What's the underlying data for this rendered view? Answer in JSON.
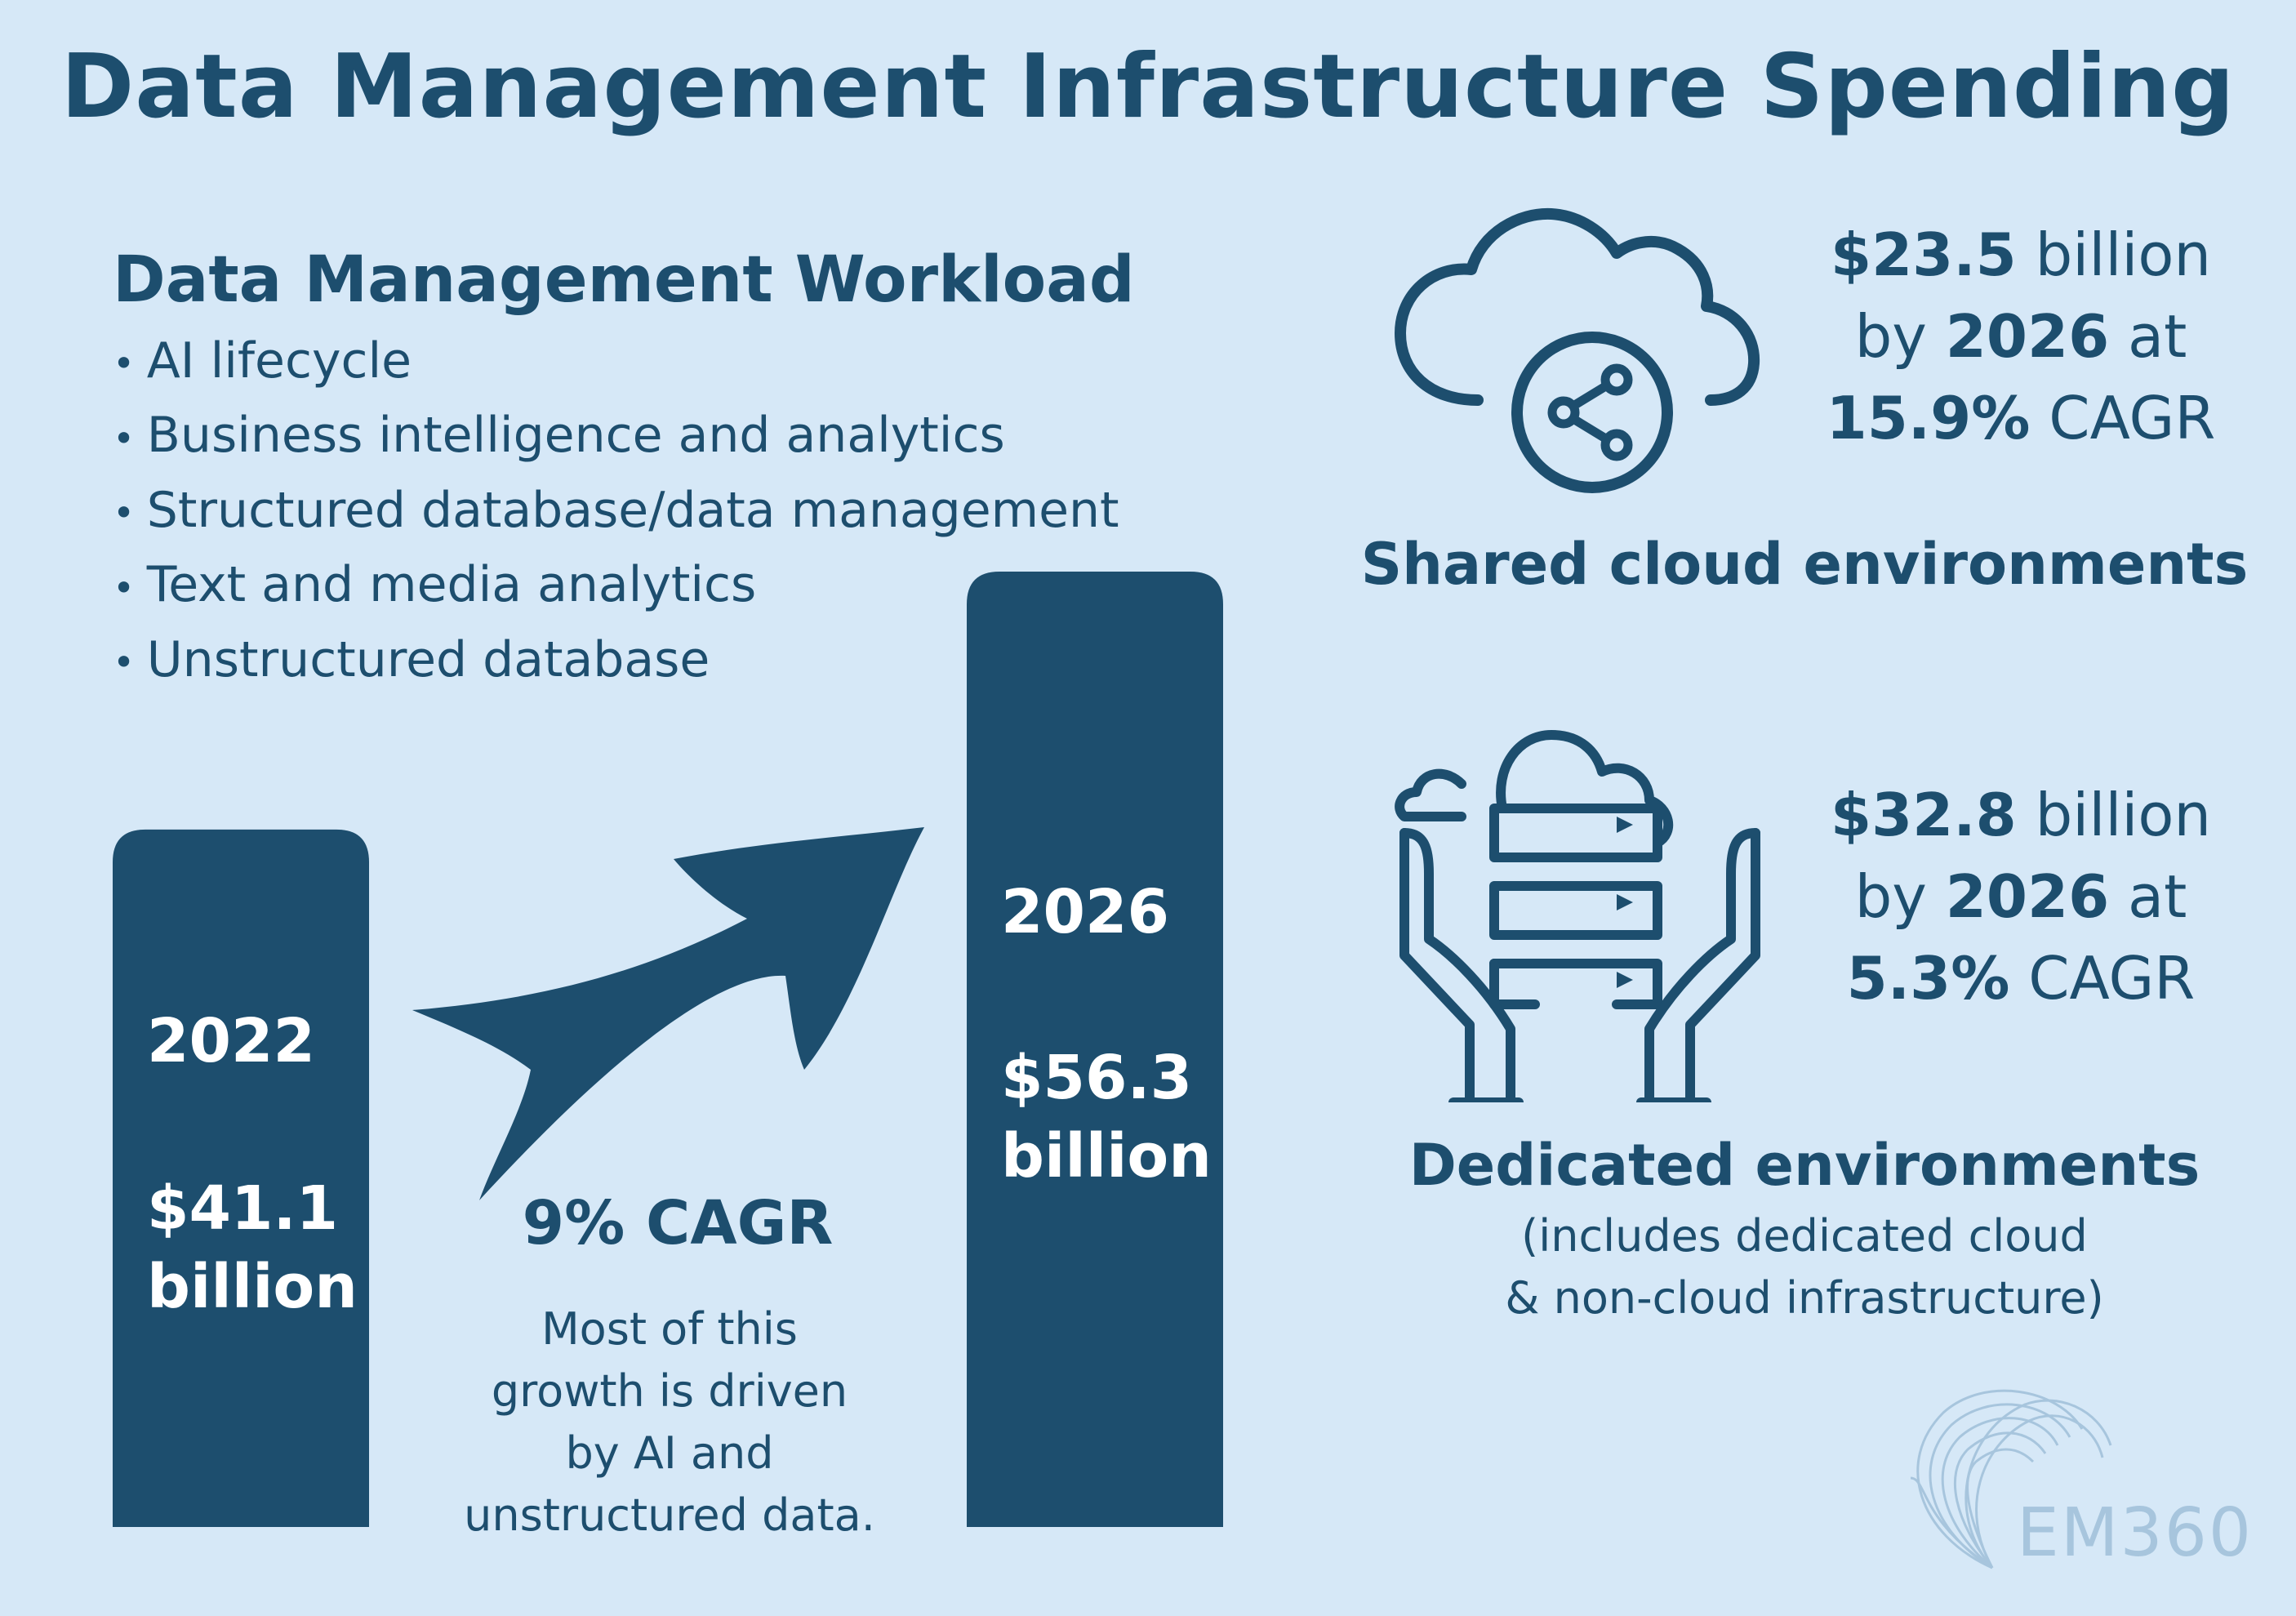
{
  "title": "Data Management Infrastructure Spending",
  "workload": {
    "heading": "Data Management Workload",
    "items": [
      "AI lifecycle",
      "Business intelligence and analytics",
      "Structured database/data management",
      "Text and media analytics",
      "Unstructured database"
    ]
  },
  "chart_data": {
    "type": "bar",
    "categories": [
      "2022",
      "2026"
    ],
    "values": [
      41.1,
      56.3
    ],
    "value_labels": [
      "$41.1 billion",
      "$56.3 billion"
    ],
    "unit": "billion",
    "ylim": [
      0,
      60
    ],
    "annotation": "9% CAGR",
    "note": "Most of this growth is driven by AI and unstructured data."
  },
  "bars": [
    {
      "year": "2022",
      "value_line1": "$41.1",
      "value_line2": "billion"
    },
    {
      "year": "2026",
      "value_line1": "$56.3",
      "value_line2": "billion"
    }
  ],
  "growth": {
    "cagr": "9% CAGR",
    "note_lines": [
      "Most of this",
      "growth is driven",
      "by AI and",
      "unstructured data."
    ]
  },
  "shared": {
    "amount": "$23.5",
    "amount_unit": " billion",
    "by": "by ",
    "year": "2026",
    "at": " at",
    "cagr": "15.9%",
    "cagr_unit": " CAGR",
    "label": "Shared cloud environments",
    "icon": "cloud-share-icon"
  },
  "dedicated": {
    "amount": "$32.8",
    "amount_unit": " billion",
    "by": "by ",
    "year": "2026",
    "at": " at",
    "cagr": "5.3%",
    "cagr_unit": " CAGR",
    "label": "Dedicated environments",
    "note_line1": "(includes dedicated cloud",
    "note_line2": "& non-cloud infrastructure)",
    "icon": "hands-server-cloud-icon"
  },
  "logo": {
    "text": "EM360",
    "icon": "em360-fan-logo-icon"
  },
  "colors": {
    "background": "#d6e8f7",
    "primary": "#1d4e6e",
    "logo": "#a7c5dd"
  }
}
